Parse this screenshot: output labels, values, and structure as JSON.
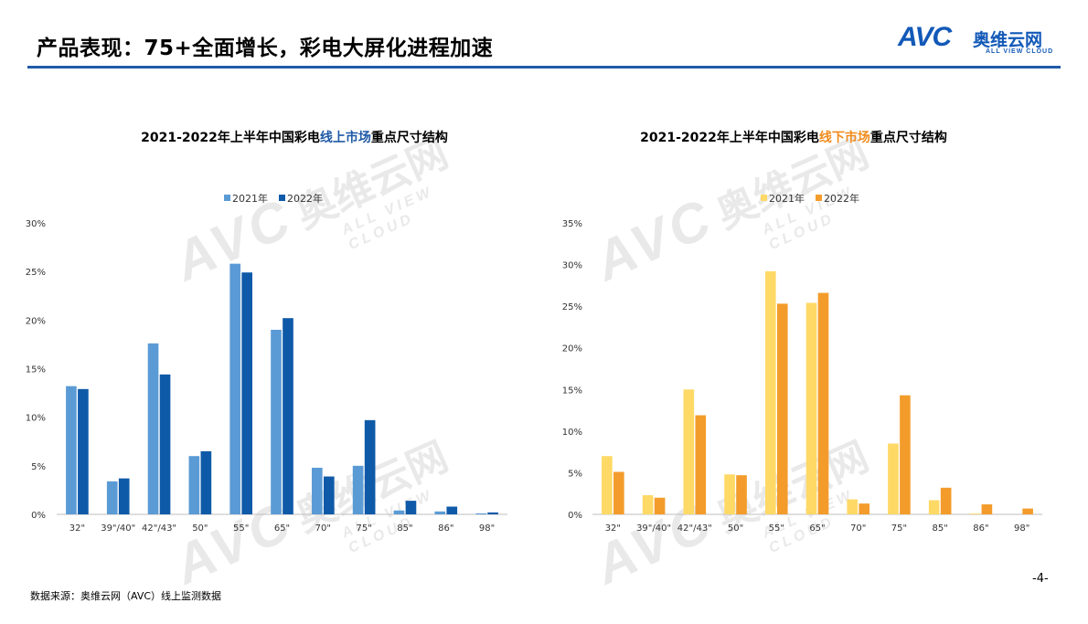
{
  "header": {
    "title": "产品表现：75+全面增长，彩电大屏化进程加速",
    "logo_mark": "AVC",
    "logo_cn": "奥维云网",
    "logo_en": "ALL VIEW CLOUD"
  },
  "watermark": {
    "mark": "AVC",
    "cn": "奥维云网",
    "en": "ALL VIEW CLOUD"
  },
  "footer": {
    "source": "数据来源：奥维云网（AVC）线上监测数据",
    "page": "-4-"
  },
  "chart_data": [
    {
      "type": "bar",
      "title": {
        "before": "2021-2022年上半年中国彩电",
        "highlight": "线上市场",
        "after": "重点尺寸结构"
      },
      "highlight_color": "#1f5aa6",
      "categories": [
        "32\"",
        "39\"/40\"",
        "42\"/43\"",
        "50\"",
        "55\"",
        "65\"",
        "70\"",
        "75\"",
        "85\"",
        "86\"",
        "98\""
      ],
      "series": [
        {
          "name": "2021年",
          "color": "#5b9bd5",
          "values": [
            13.2,
            3.4,
            17.6,
            6.0,
            25.8,
            19.0,
            4.8,
            5.0,
            0.4,
            0.3,
            0.1
          ]
        },
        {
          "name": "2022年",
          "color": "#0f5aa8",
          "values": [
            12.9,
            3.7,
            14.4,
            6.5,
            24.9,
            20.2,
            3.9,
            9.7,
            1.4,
            0.8,
            0.2
          ]
        }
      ],
      "ylim": [
        0,
        30
      ],
      "yticks": [
        "0%",
        "5%",
        "10%",
        "15%",
        "20%",
        "25%",
        "30%"
      ],
      "legend": "top",
      "grid": false
    },
    {
      "type": "bar",
      "title": {
        "before": "2021-2022年上半年中国彩电",
        "highlight": "线下市场",
        "after": "重点尺寸结构"
      },
      "highlight_color": "#f08c1e",
      "categories": [
        "32\"",
        "39\"/40\"",
        "42\"/43\"",
        "50\"",
        "55\"",
        "65\"",
        "70\"",
        "75\"",
        "85\"",
        "86\"",
        "98\""
      ],
      "series": [
        {
          "name": "2021年",
          "color": "#ffd966",
          "values": [
            7.0,
            2.3,
            15.0,
            4.8,
            29.2,
            25.4,
            1.8,
            8.5,
            1.7,
            0.1,
            0.0
          ]
        },
        {
          "name": "2022年",
          "color": "#f39c2b",
          "values": [
            5.1,
            2.0,
            11.9,
            4.7,
            25.3,
            26.6,
            1.3,
            14.3,
            3.2,
            1.2,
            0.7
          ]
        }
      ],
      "ylim": [
        0,
        35
      ],
      "yticks": [
        "0%",
        "5%",
        "10%",
        "15%",
        "20%",
        "25%",
        "30%",
        "35%"
      ],
      "legend": "top",
      "grid": false
    }
  ]
}
